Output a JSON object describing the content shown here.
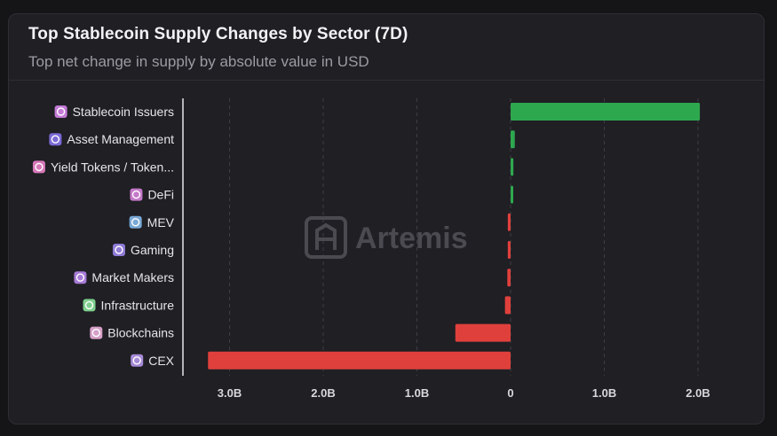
{
  "title": "Top Stablecoin Supply Changes by Sector (7D)",
  "subtitle": "Top net change in supply by absolute value in USD",
  "watermark": "Artemis",
  "colors": {
    "positive": "#2ea84f",
    "negative": "#e0403c"
  },
  "chart_data": {
    "type": "bar",
    "orientation": "horizontal",
    "categories": [
      "Stablecoin Issuers",
      "Asset Management",
      "Yield Tokens / Token...",
      "DeFi",
      "MEV",
      "Gaming",
      "Market Makers",
      "Infrastructure",
      "Blockchains",
      "CEX"
    ],
    "category_icons": [
      "stablecoin-issuers-icon",
      "asset-management-icon",
      "yield-tokens-icon",
      "defi-icon",
      "mev-icon",
      "gaming-icon",
      "market-makers-icon",
      "infrastructure-icon",
      "blockchains-icon",
      "cex-icon"
    ],
    "category_icon_colors": [
      "#c47ad6",
      "#7b6bd6",
      "#d678b8",
      "#c478c8",
      "#7aa9d6",
      "#8f7ad6",
      "#a77ad6",
      "#7fcf8e",
      "#d6a0c8",
      "#a68ad6"
    ],
    "values": [
      2.02,
      0.045,
      0.03,
      0.025,
      -0.03,
      -0.03,
      -0.035,
      -0.06,
      -0.59,
      -3.23
    ],
    "unit": "B USD",
    "xlim": [
      -3.4,
      2.4
    ],
    "x_ticks": [
      -3,
      -2,
      -1,
      0,
      1,
      2
    ],
    "x_tick_labels": [
      "3.0B",
      "2.0B",
      "1.0B",
      "0",
      "1.0B",
      "2.0B"
    ],
    "grid": "vertical dashed"
  }
}
